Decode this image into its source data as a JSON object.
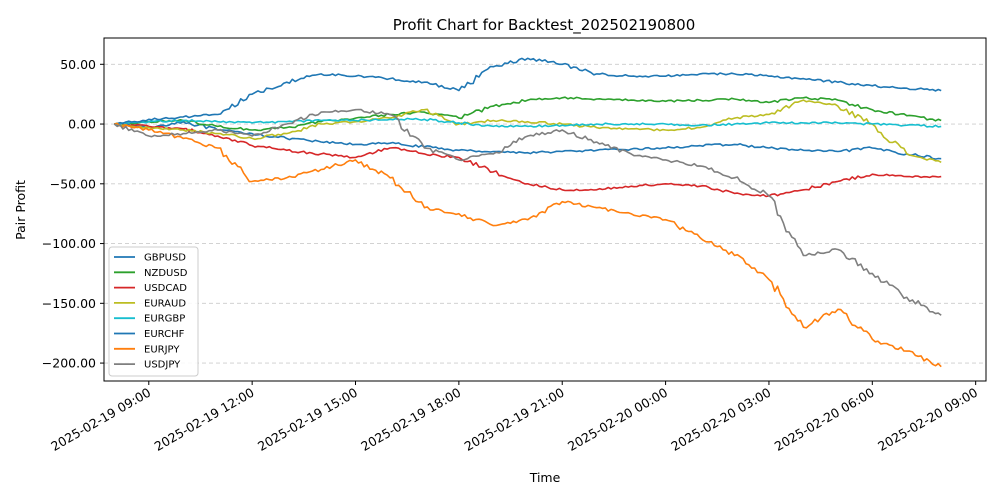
{
  "chart_data": {
    "type": "line",
    "title": "Profit Chart for Backtest_202502190800",
    "xlabel": "Time",
    "ylabel": "Pair Profit",
    "grid": "y-dashed",
    "legend_position": "lower-left",
    "xlim": [
      "2025-02-19 07:42",
      "2025-02-20 09:18"
    ],
    "ylim": [
      -215,
      72
    ],
    "x_ticks": [
      "2025-02-19 09:00",
      "2025-02-19 12:00",
      "2025-02-19 15:00",
      "2025-02-19 18:00",
      "2025-02-19 21:00",
      "2025-02-20 00:00",
      "2025-02-20 03:00",
      "2025-02-20 06:00",
      "2025-02-20 09:00"
    ],
    "y_ticks": [
      50,
      0,
      -50,
      -100,
      -150,
      -200
    ],
    "y_tick_labels": [
      "50.00",
      "0.00",
      "−50.00",
      "−100.00",
      "−150.00",
      "−200.00"
    ],
    "x": [
      "2025-02-19 08:00",
      "2025-02-19 09:00",
      "2025-02-19 10:00",
      "2025-02-19 11:00",
      "2025-02-19 12:00",
      "2025-02-19 13:00",
      "2025-02-19 14:00",
      "2025-02-19 15:00",
      "2025-02-19 16:00",
      "2025-02-19 17:00",
      "2025-02-19 18:00",
      "2025-02-19 19:00",
      "2025-02-19 20:00",
      "2025-02-19 21:00",
      "2025-02-19 22:00",
      "2025-02-19 23:00",
      "2025-02-20 00:00",
      "2025-02-20 01:00",
      "2025-02-20 02:00",
      "2025-02-20 03:00",
      "2025-02-20 04:00",
      "2025-02-20 05:00",
      "2025-02-20 06:00",
      "2025-02-20 07:00",
      "2025-02-20 08:00"
    ],
    "series": [
      {
        "name": "GBPUSD",
        "color": "#1f77b4",
        "values": [
          0,
          -3,
          2,
          -5,
          -8,
          -12,
          -15,
          -17,
          -16,
          -19,
          -22,
          -23,
          -24,
          -23,
          -22,
          -21,
          -20,
          -18,
          -17,
          -20,
          -22,
          -23,
          -20,
          -25,
          -29
        ]
      },
      {
        "name": "NZDUSD",
        "color": "#2ca02c",
        "values": [
          0,
          2,
          3,
          -2,
          -5,
          -3,
          2,
          5,
          8,
          10,
          5,
          15,
          20,
          22,
          21,
          20,
          19,
          20,
          21,
          18,
          22,
          20,
          12,
          7,
          3
        ]
      },
      {
        "name": "USDCAD",
        "color": "#d62728",
        "values": [
          0,
          -2,
          -4,
          -10,
          -18,
          -22,
          -25,
          -28,
          -20,
          -25,
          -28,
          -40,
          -50,
          -55,
          -55,
          -52,
          -50,
          -52,
          -58,
          -60,
          -55,
          -48,
          -42,
          -44,
          -44
        ]
      },
      {
        "name": "EURAUD",
        "color": "#bcbd22",
        "values": [
          0,
          -3,
          -5,
          -8,
          -12,
          -8,
          0,
          2,
          5,
          12,
          0,
          3,
          2,
          0,
          -3,
          -4,
          -5,
          -3,
          5,
          8,
          20,
          15,
          0,
          -25,
          -32
        ]
      },
      {
        "name": "EURGBP",
        "color": "#17becf",
        "values": [
          0,
          2,
          3,
          2,
          1,
          2,
          3,
          3,
          4,
          4,
          1,
          -2,
          -2,
          -1,
          0,
          0,
          0,
          -1,
          0,
          1,
          1,
          1,
          0,
          -1,
          -2
        ]
      },
      {
        "name": "EURCHF",
        "color": "#1f77b4",
        "values": [
          0,
          4,
          6,
          8,
          25,
          35,
          42,
          40,
          38,
          35,
          28,
          48,
          55,
          50,
          42,
          40,
          40,
          42,
          42,
          40,
          38,
          35,
          32,
          30,
          28
        ]
      },
      {
        "name": "EURJPY",
        "color": "#ff7f0e",
        "values": [
          0,
          -5,
          -12,
          -20,
          -48,
          -45,
          -38,
          -30,
          -45,
          -70,
          -75,
          -85,
          -80,
          -65,
          -70,
          -75,
          -80,
          -95,
          -110,
          -130,
          -170,
          -155,
          -180,
          -190,
          -203
        ]
      },
      {
        "name": "USDJPY",
        "color": "#7f7f7f",
        "values": [
          0,
          -10,
          -8,
          -5,
          -10,
          0,
          10,
          12,
          8,
          -20,
          -30,
          -25,
          -10,
          -5,
          -15,
          -25,
          -30,
          -35,
          -45,
          -60,
          -110,
          -105,
          -125,
          -145,
          -160
        ]
      }
    ]
  }
}
